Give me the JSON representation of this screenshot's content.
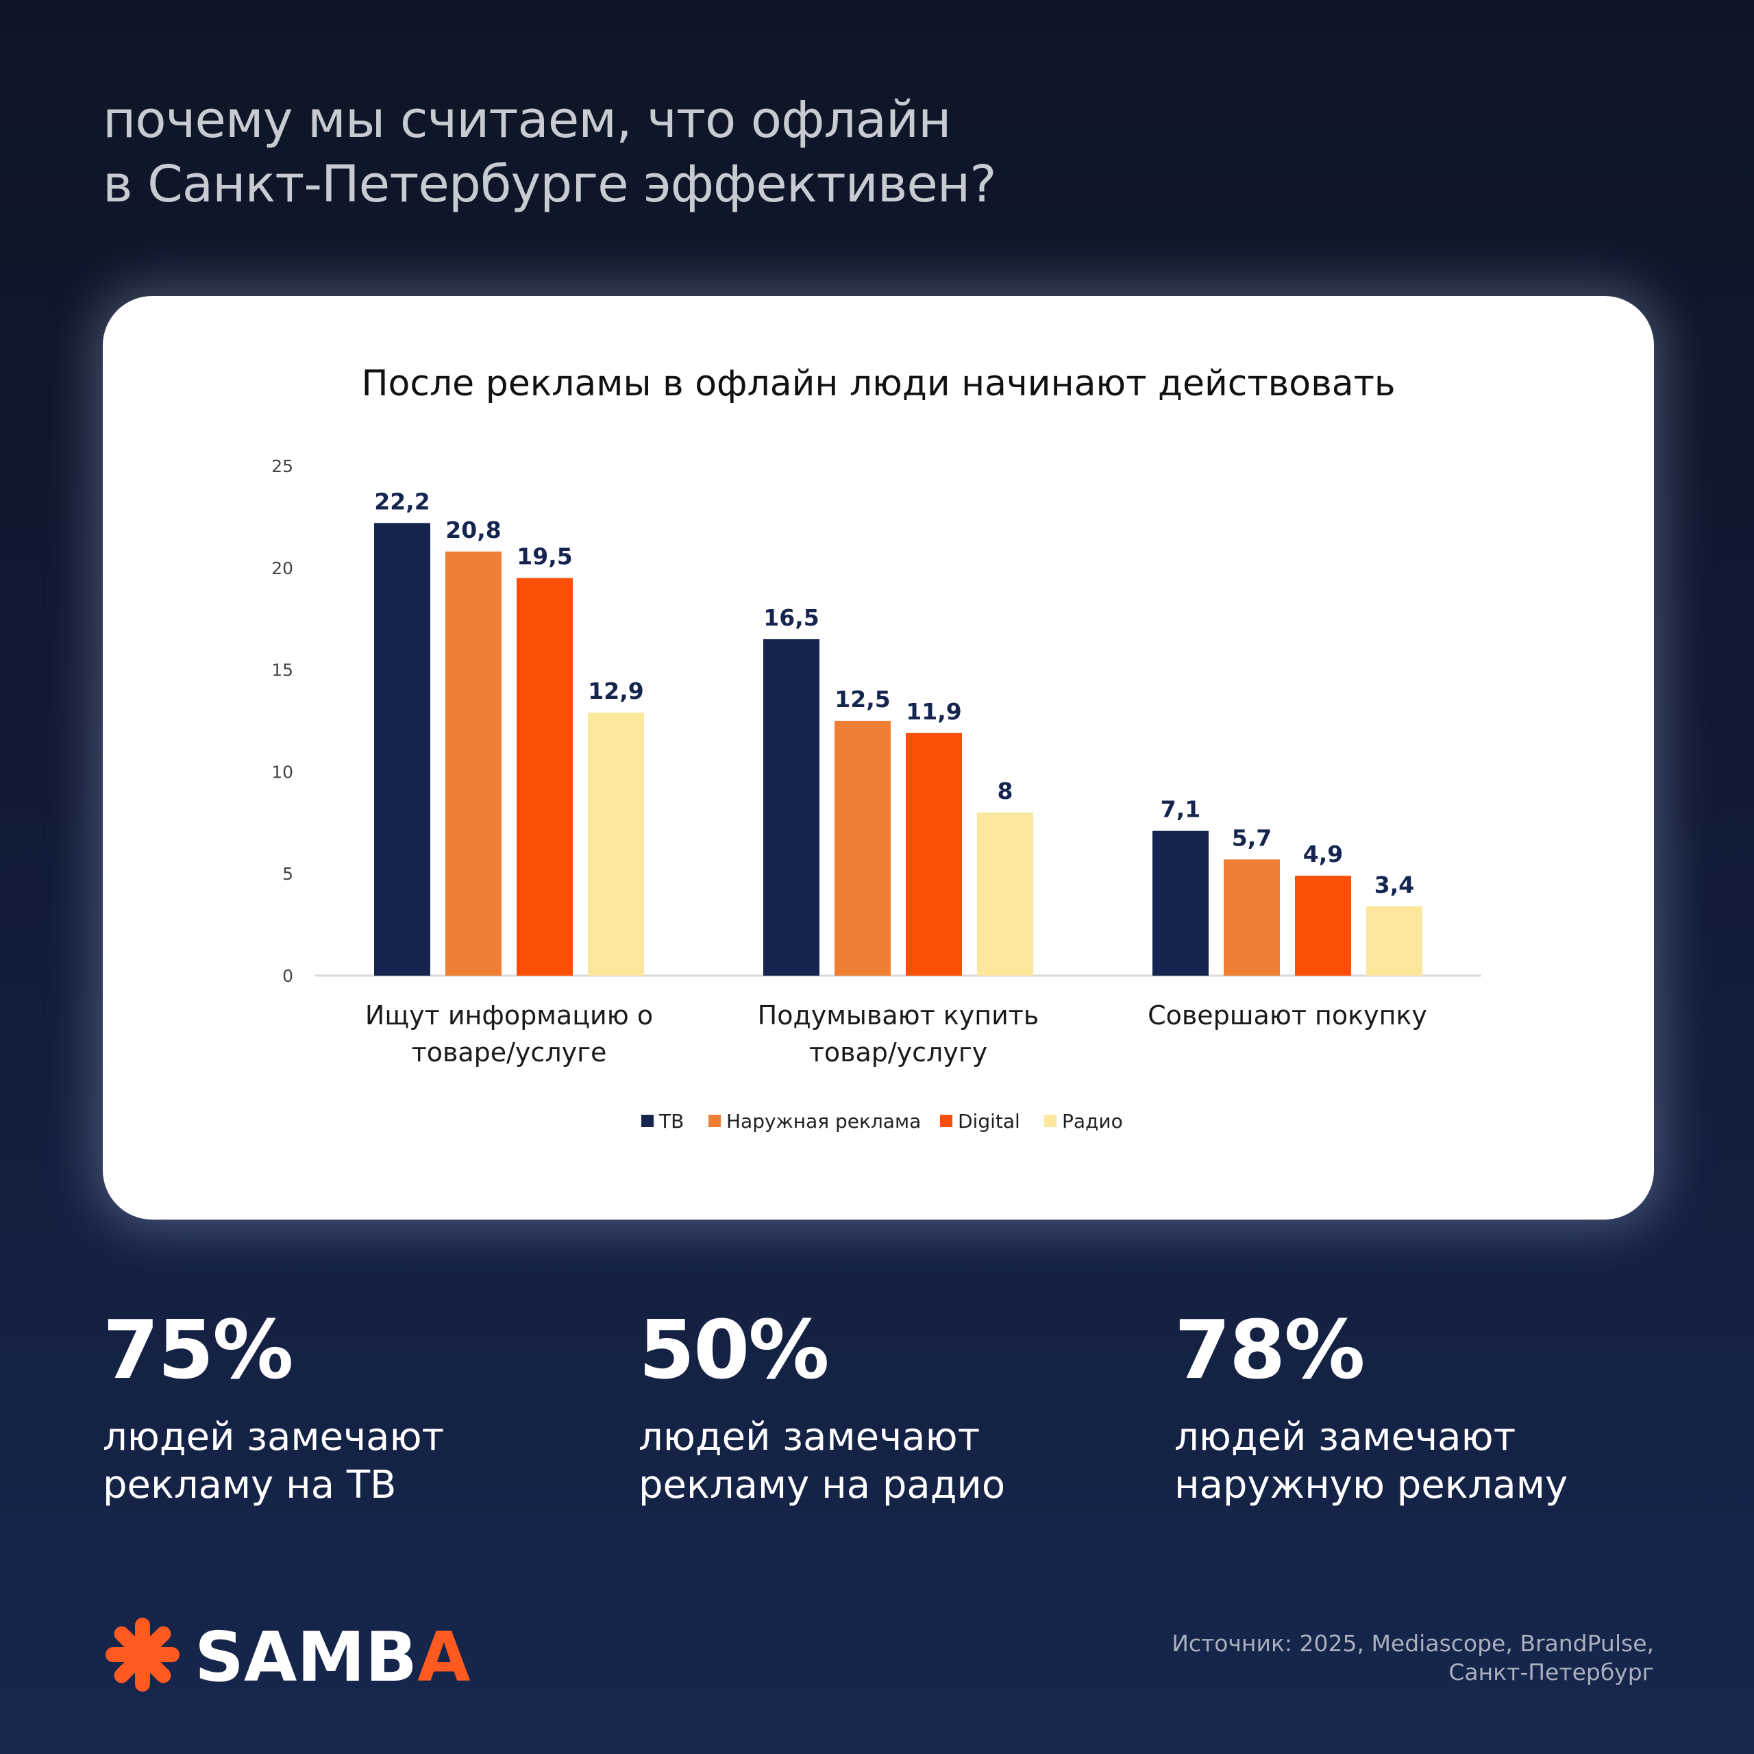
{
  "headline": {
    "line1": "почему мы считаем, что офлайн",
    "line2": "в Санкт-Петербурге эффективен?"
  },
  "chart_data": {
    "type": "bar",
    "title": "После рекламы в офлайн люди начинают действовать",
    "categories": [
      [
        "Ищут информацию о",
        "товаре/услуге"
      ],
      [
        "Подумывают купить",
        "товар/услугу"
      ],
      [
        "Совершают покупку"
      ]
    ],
    "series": [
      {
        "name": "ТВ",
        "color": "#15254f",
        "values": [
          22.2,
          16.5,
          7.1
        ],
        "labels": [
          "22,2",
          "16,5",
          "7,1"
        ]
      },
      {
        "name": "Наружная реклама",
        "color": "#ef7f34",
        "values": [
          20.8,
          12.5,
          5.7
        ],
        "labels": [
          "20,8",
          "12,5",
          "5,7"
        ]
      },
      {
        "name": "Digital",
        "color": "#fb4f08",
        "values": [
          19.5,
          11.9,
          4.9
        ],
        "labels": [
          "19,5",
          "11,9",
          "4,9"
        ]
      },
      {
        "name": "Радио",
        "color": "#fde79d",
        "values": [
          12.9,
          8,
          3.4
        ],
        "labels": [
          "12,9",
          "8",
          "3,4"
        ]
      }
    ],
    "ylim": [
      0,
      25
    ],
    "yticks": [
      0,
      5,
      10,
      15,
      20,
      25
    ],
    "grid": false,
    "legend_position": "bottom"
  },
  "stats": [
    {
      "value": "75%",
      "line1": "людей замечают",
      "line2": "рекламу на ТВ"
    },
    {
      "value": "50%",
      "line1": "людей замечают",
      "line2": "рекламу на радио"
    },
    {
      "value": "78%",
      "line1": "людей замечают",
      "line2": "наружную рекламу"
    }
  ],
  "logo": {
    "text": "SAMBA",
    "icon": "asterisk-icon",
    "accent": "#ff5a1f"
  },
  "source": {
    "line1": "Источник: 2025, Mediascope, BrandPulse,",
    "line2": "Санкт-Петербург"
  }
}
